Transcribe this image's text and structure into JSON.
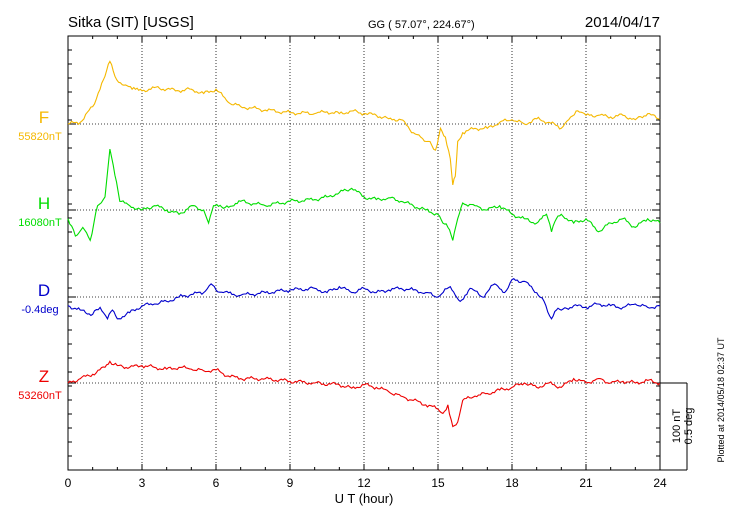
{
  "header": {
    "station": "Sitka (SIT)  [USGS]",
    "coords": "GG ( 57.07°, 224.67°)",
    "date": "2014/04/17"
  },
  "side_note": "Plotted at 2014/05/18 02:37 UT",
  "scale_bar": {
    "nt": "100 nT",
    "deg": "0.5 deg"
  },
  "colors": {
    "F": "#f5b800",
    "H": "#00dd00",
    "D": "#0000cc",
    "Z": "#ee0000"
  },
  "chart_data": {
    "type": "line",
    "xlabel": "U T (hour)",
    "xlim": [
      0,
      24
    ],
    "x_ticks": [
      0,
      3,
      6,
      9,
      12,
      15,
      18,
      21,
      24
    ],
    "grid": true,
    "ylabel": "",
    "scale": "100 nT / 0.5 deg per bar",
    "series": [
      {
        "name": "F",
        "baseline_label": "55820nT",
        "color": "#f5b800",
        "x": [
          0,
          0.5,
          1,
          1.3,
          1.5,
          1.7,
          1.9,
          2.2,
          2.6,
          3,
          3.5,
          4,
          4.5,
          5,
          5.5,
          6,
          6.5,
          7,
          8,
          9,
          10,
          10.5,
          11,
          11.5,
          12,
          12.5,
          13,
          13.5,
          14,
          14.3,
          14.6,
          14.9,
          15.1,
          15.3,
          15.5,
          15.6,
          15.7,
          15.8,
          16,
          16.5,
          17,
          17.5,
          18,
          18.5,
          19,
          19.5,
          20,
          20.3,
          20.6,
          21,
          21.5,
          22,
          22.5,
          23,
          23.5,
          24
        ],
        "values": [
          0,
          2,
          20,
          40,
          55,
          72,
          55,
          45,
          40,
          38,
          42,
          40,
          38,
          40,
          35,
          40,
          25,
          20,
          16,
          13,
          12,
          14,
          12,
          15,
          12,
          10,
          6,
          5,
          -10,
          -15,
          -20,
          -30,
          -5,
          -15,
          -40,
          -70,
          -60,
          -20,
          -10,
          -5,
          -5,
          2,
          5,
          0,
          6,
          2,
          -5,
          5,
          15,
          10,
          10,
          8,
          10,
          5,
          12,
          5
        ]
      },
      {
        "name": "H",
        "baseline_label": "16080nT",
        "color": "#00dd00",
        "x": [
          0,
          0.3,
          0.6,
          0.9,
          1.2,
          1.5,
          1.7,
          1.9,
          2.1,
          2.5,
          3,
          3.5,
          4,
          4.5,
          5,
          5.5,
          5.7,
          5.9,
          6.3,
          7,
          8,
          9,
          10,
          10.5,
          11,
          11.5,
          12,
          12.5,
          13,
          13.5,
          14,
          14.5,
          15,
          15.2,
          15.4,
          15.6,
          15.8,
          16,
          16.5,
          17,
          17.5,
          18,
          18.5,
          19,
          19.2,
          19.4,
          19.6,
          19.8,
          20,
          20.5,
          21,
          21.5,
          22,
          22.5,
          23,
          23.5,
          24
        ],
        "values": [
          -10,
          -30,
          -20,
          -35,
          5,
          15,
          70,
          40,
          10,
          5,
          0,
          5,
          0,
          -5,
          5,
          0,
          -15,
          5,
          2,
          10,
          5,
          10,
          12,
          15,
          20,
          25,
          15,
          12,
          14,
          10,
          5,
          0,
          -5,
          -15,
          -20,
          -35,
          -10,
          8,
          5,
          0,
          5,
          -5,
          -10,
          -15,
          -10,
          -5,
          -25,
          -10,
          -5,
          -15,
          -10,
          -25,
          -15,
          -10,
          -20,
          -10,
          -15
        ]
      },
      {
        "name": "D",
        "baseline_label": "-0.4deg",
        "color": "#0000cc",
        "x": [
          0,
          0.5,
          1,
          1.3,
          1.6,
          1.8,
          2,
          2.5,
          3,
          3.5,
          4,
          4.5,
          5,
          5.5,
          5.8,
          6,
          6.3,
          7,
          8,
          9,
          10,
          10.5,
          11,
          11.5,
          12,
          12.5,
          13,
          13.5,
          14,
          14.5,
          15,
          15.5,
          15.9,
          16.3,
          16.8,
          17.3,
          17.7,
          18,
          18.5,
          19,
          19.3,
          19.6,
          19.8,
          20,
          20.5,
          21,
          21.5,
          22,
          22.5,
          23,
          23.5,
          24
        ],
        "values": [
          -10,
          -15,
          -20,
          -12,
          -25,
          -15,
          -25,
          -18,
          -10,
          -8,
          -5,
          0,
          3,
          5,
          15,
          8,
          5,
          2,
          5,
          8,
          10,
          5,
          12,
          5,
          10,
          5,
          8,
          10,
          8,
          5,
          0,
          12,
          -5,
          10,
          0,
          15,
          5,
          20,
          18,
          5,
          -5,
          -25,
          -15,
          -15,
          -10,
          -12,
          -8,
          -10,
          -12,
          -8,
          -12,
          -10
        ]
      },
      {
        "name": "Z",
        "baseline_label": "53260nT",
        "color": "#ee0000",
        "x": [
          0,
          0.5,
          1,
          1.5,
          1.7,
          2,
          2.5,
          3,
          3.5,
          4,
          4.5,
          5,
          5.5,
          6,
          6.5,
          7,
          8,
          9,
          10,
          11,
          11.5,
          12,
          12.5,
          13,
          13.5,
          14,
          14.5,
          15,
          15.2,
          15.4,
          15.6,
          15.8,
          16,
          16.5,
          17,
          17.5,
          18,
          18.5,
          19,
          19.5,
          20,
          20.5,
          21,
          21.5,
          22,
          22.5,
          23,
          23.5,
          24
        ],
        "values": [
          0,
          5,
          10,
          18,
          25,
          20,
          18,
          20,
          18,
          16,
          18,
          16,
          14,
          15,
          8,
          5,
          5,
          2,
          0,
          -2,
          -6,
          -2,
          -5,
          -10,
          -15,
          -20,
          -25,
          -30,
          -35,
          -25,
          -50,
          -45,
          -20,
          -15,
          -12,
          -8,
          -5,
          0,
          -5,
          0,
          -5,
          5,
          0,
          5,
          0,
          2,
          0,
          3,
          0
        ]
      }
    ]
  }
}
